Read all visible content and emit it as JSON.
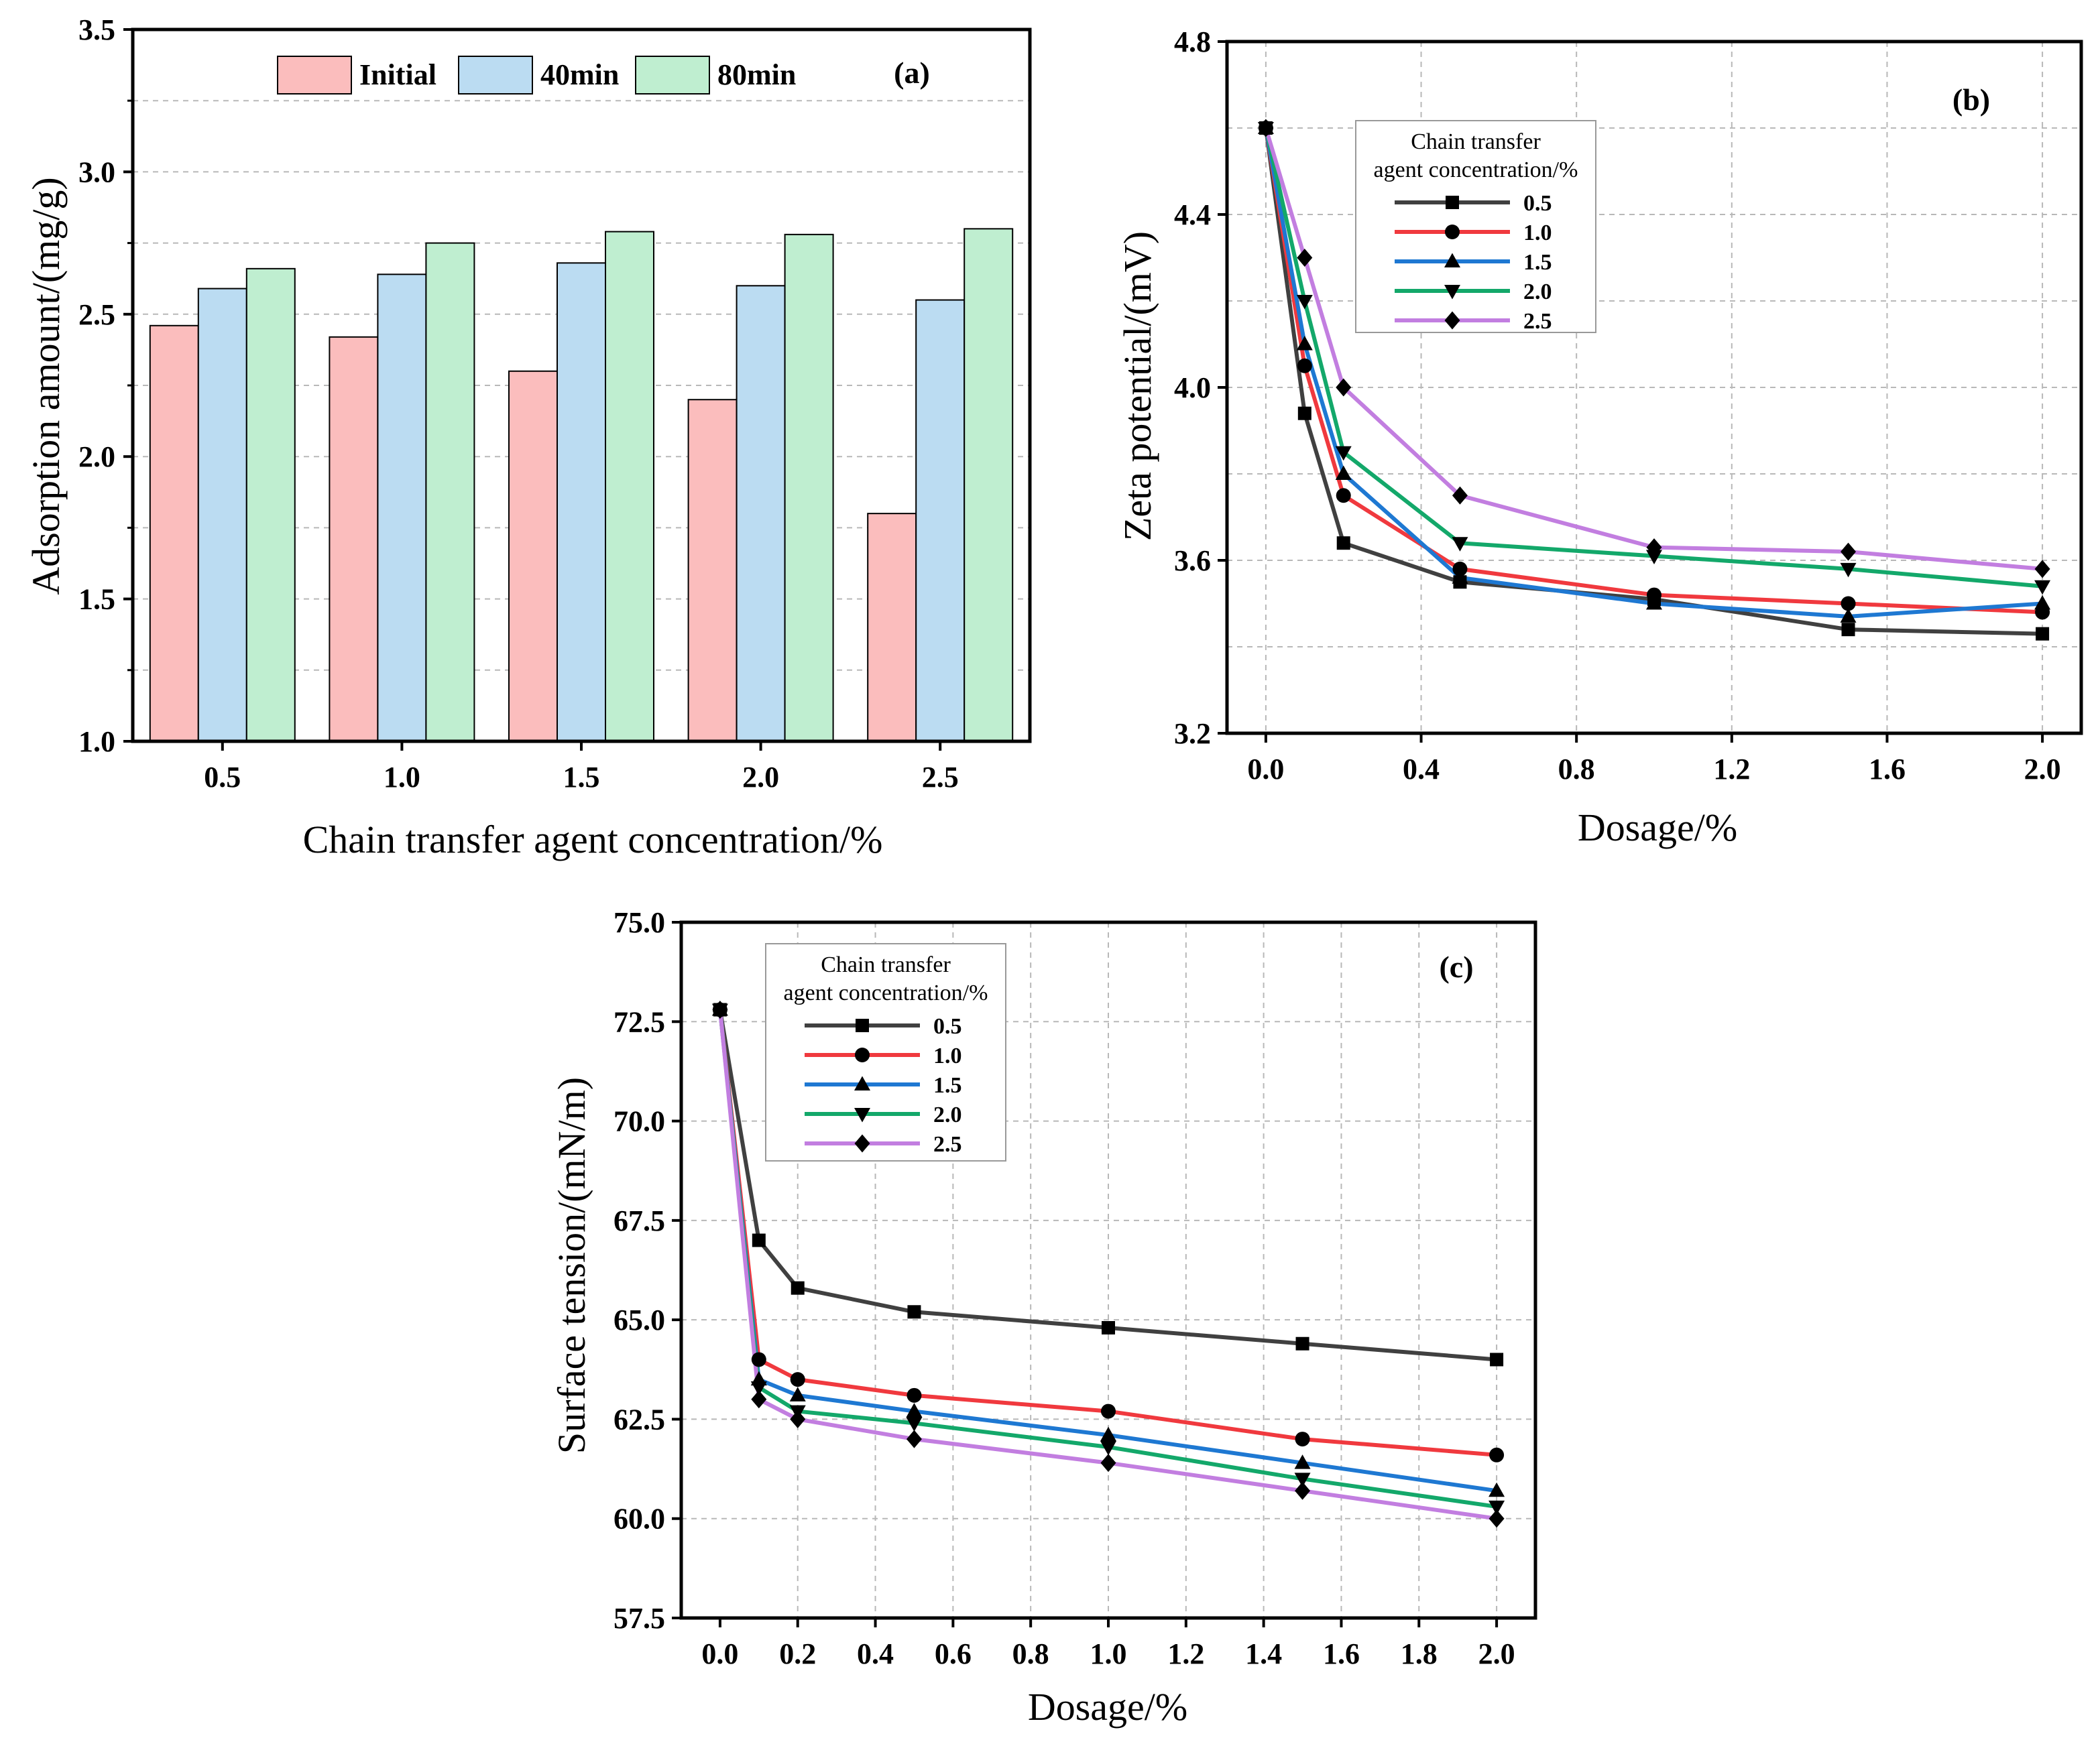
{
  "chart_data": [
    {
      "id": "a",
      "type": "bar",
      "panel_label": "(a)",
      "xlabel": "Chain transfer agent concentration/%",
      "ylabel": "Adsorption amount/(mg/g)",
      "categories": [
        "0.5",
        "1.0",
        "1.5",
        "2.0",
        "2.5"
      ],
      "ylim": [
        1.0,
        3.5
      ],
      "yticks": [
        "1.0",
        "1.5",
        "2.0",
        "2.5",
        "3.0",
        "3.5"
      ],
      "grid": true,
      "legend_position": "top",
      "series": [
        {
          "name": "Initial",
          "color": "#fbbdbd",
          "values": [
            2.46,
            2.42,
            2.3,
            2.2,
            1.8
          ]
        },
        {
          "name": "40min",
          "color": "#bbdcf2",
          "values": [
            2.59,
            2.64,
            2.68,
            2.6,
            2.55
          ]
        },
        {
          "name": "80min",
          "color": "#bfeed0",
          "values": [
            2.66,
            2.75,
            2.79,
            2.78,
            2.8
          ]
        }
      ]
    },
    {
      "id": "b",
      "type": "line",
      "panel_label": "(b)",
      "xlabel": "Dosage/%",
      "ylabel": "Zeta potential/(mV)",
      "xlim": [
        -0.1,
        2.1
      ],
      "ylim": [
        3.2,
        4.8
      ],
      "xticks": [
        "0.0",
        "0.4",
        "0.8",
        "1.2",
        "1.6",
        "2.0"
      ],
      "yticks": [
        "3.2",
        "3.6",
        "4.0",
        "4.4",
        "4.8"
      ],
      "grid": true,
      "legend_title": [
        "Chain transfer",
        "agent concentration/%"
      ],
      "legend_position": "upper-middle",
      "x": [
        0,
        0.1,
        0.2,
        0.5,
        1.0,
        1.5,
        2.0
      ],
      "series": [
        {
          "name": "0.5",
          "color": "#404040",
          "marker": "square",
          "values": [
            4.6,
            3.94,
            3.64,
            3.55,
            3.51,
            3.44,
            3.43
          ]
        },
        {
          "name": "1.0",
          "color": "#f0393e",
          "marker": "circle",
          "values": [
            4.6,
            4.05,
            3.75,
            3.58,
            3.52,
            3.5,
            3.48
          ]
        },
        {
          "name": "1.5",
          "color": "#1e78d2",
          "marker": "triangle-up",
          "values": [
            4.6,
            4.1,
            3.8,
            3.56,
            3.5,
            3.47,
            3.5
          ]
        },
        {
          "name": "2.0",
          "color": "#13a86a",
          "marker": "triangle-down",
          "values": [
            4.6,
            4.2,
            3.85,
            3.64,
            3.61,
            3.58,
            3.54
          ]
        },
        {
          "name": "2.5",
          "color": "#c27ee0",
          "marker": "diamond",
          "values": [
            4.6,
            4.3,
            4.0,
            3.75,
            3.63,
            3.62,
            3.58
          ]
        }
      ]
    },
    {
      "id": "c",
      "type": "line",
      "panel_label": "(c)",
      "xlabel": "Dosage/%",
      "ylabel": "Surface tension/(mN/m)",
      "xlim": [
        -0.1,
        2.1
      ],
      "ylim": [
        57.5,
        75.0
      ],
      "xticks": [
        "0.0",
        "0.2",
        "0.4",
        "0.6",
        "0.8",
        "1.0",
        "1.2",
        "1.4",
        "1.6",
        "1.8",
        "2.0"
      ],
      "yticks": [
        "57.5",
        "60.0",
        "62.5",
        "65.0",
        "67.5",
        "70.0",
        "72.5",
        "75.0"
      ],
      "grid": true,
      "legend_title": [
        "Chain transfer",
        "agent concentration/%"
      ],
      "legend_position": "upper-left",
      "x": [
        0,
        0.1,
        0.2,
        0.5,
        1.0,
        1.5,
        2.0
      ],
      "series": [
        {
          "name": "0.5",
          "color": "#404040",
          "marker": "square",
          "values": [
            72.8,
            67.0,
            65.8,
            65.2,
            64.8,
            64.4,
            64.0
          ]
        },
        {
          "name": "1.0",
          "color": "#f0393e",
          "marker": "circle",
          "values": [
            72.8,
            64.0,
            63.5,
            63.1,
            62.7,
            62.0,
            61.6
          ]
        },
        {
          "name": "1.5",
          "color": "#1e78d2",
          "marker": "triangle-up",
          "values": [
            72.8,
            63.5,
            63.1,
            62.7,
            62.1,
            61.4,
            60.7
          ]
        },
        {
          "name": "2.0",
          "color": "#13a86a",
          "marker": "triangle-down",
          "values": [
            72.8,
            63.3,
            62.7,
            62.4,
            61.8,
            61.0,
            60.3
          ]
        },
        {
          "name": "2.5",
          "color": "#c27ee0",
          "marker": "diamond",
          "values": [
            72.8,
            63.0,
            62.5,
            62.0,
            61.4,
            60.7,
            60.0
          ]
        }
      ]
    }
  ]
}
